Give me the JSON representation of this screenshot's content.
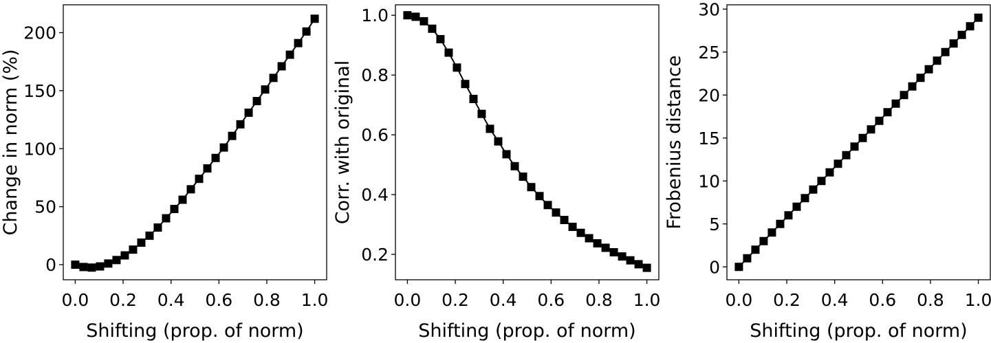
{
  "chart_data": [
    {
      "type": "line",
      "xlabel": "Shifting (prop. of norm)",
      "ylabel": "Change in norm (%)",
      "xlim": [
        -0.05,
        1.05
      ],
      "ylim": [
        -13,
        224
      ],
      "xticks": [
        0.0,
        0.2,
        0.4,
        0.6,
        0.8,
        1.0
      ],
      "xtick_labels": [
        "0.0",
        "0.2",
        "0.4",
        "0.6",
        "0.8",
        "1.0"
      ],
      "yticks": [
        0,
        50,
        100,
        150,
        200
      ],
      "ytick_labels": [
        "0",
        "50",
        "100",
        "150",
        "200"
      ],
      "marker": "square",
      "color": "#000000",
      "grid": false,
      "x": [
        0,
        0.0345,
        0.069,
        0.1034,
        0.1379,
        0.1724,
        0.2069,
        0.2414,
        0.2759,
        0.3103,
        0.3448,
        0.3793,
        0.4138,
        0.4483,
        0.4828,
        0.5172,
        0.5517,
        0.5862,
        0.6207,
        0.6552,
        0.6897,
        0.7241,
        0.7586,
        0.7931,
        0.8276,
        0.8621,
        0.8966,
        0.931,
        0.9655,
        1.0
      ],
      "y": [
        0,
        -2,
        -2.5,
        -1.5,
        1,
        4,
        8,
        13,
        19,
        25,
        32,
        40,
        48,
        56,
        65,
        74,
        83,
        92,
        101,
        111,
        121,
        131,
        141,
        151,
        161,
        171,
        181,
        191,
        201,
        212
      ]
    },
    {
      "type": "line",
      "xlabel": "Shifting (prop. of norm)",
      "ylabel": "Corr. with original",
      "xlim": [
        -0.05,
        1.05
      ],
      "ylim": [
        0.115,
        1.035
      ],
      "xticks": [
        0.0,
        0.2,
        0.4,
        0.6,
        0.8,
        1.0
      ],
      "xtick_labels": [
        "0.0",
        "0.2",
        "0.4",
        "0.6",
        "0.8",
        "1.0"
      ],
      "yticks": [
        0.2,
        0.4,
        0.6,
        0.8,
        1.0
      ],
      "ytick_labels": [
        "0.2",
        "0.4",
        "0.6",
        "0.8",
        "1.0"
      ],
      "marker": "square",
      "color": "#000000",
      "grid": false,
      "x": [
        0,
        0.0345,
        0.069,
        0.1034,
        0.1379,
        0.1724,
        0.2069,
        0.2414,
        0.2759,
        0.3103,
        0.3448,
        0.3793,
        0.4138,
        0.4483,
        0.4828,
        0.5172,
        0.5517,
        0.5862,
        0.6207,
        0.6552,
        0.6897,
        0.7241,
        0.7586,
        0.7931,
        0.8276,
        0.8621,
        0.8966,
        0.931,
        0.9655,
        1.0
      ],
      "y": [
        1.0,
        0.995,
        0.98,
        0.955,
        0.92,
        0.875,
        0.825,
        0.77,
        0.72,
        0.67,
        0.62,
        0.578,
        0.535,
        0.495,
        0.46,
        0.425,
        0.395,
        0.365,
        0.34,
        0.315,
        0.292,
        0.272,
        0.254,
        0.237,
        0.222,
        0.207,
        0.193,
        0.18,
        0.167,
        0.155
      ]
    },
    {
      "type": "line",
      "xlabel": "Shifting (prop. of norm)",
      "ylabel": "Frobenius distance",
      "xlim": [
        -0.05,
        1.05
      ],
      "ylim": [
        -1.5,
        30.5
      ],
      "xticks": [
        0.0,
        0.2,
        0.4,
        0.6,
        0.8,
        1.0
      ],
      "xtick_labels": [
        "0.0",
        "0.2",
        "0.4",
        "0.6",
        "0.8",
        "1.0"
      ],
      "yticks": [
        0,
        5,
        10,
        15,
        20,
        25,
        30
      ],
      "ytick_labels": [
        "0",
        "5",
        "10",
        "15",
        "20",
        "25",
        "30"
      ],
      "marker": "square",
      "color": "#000000",
      "grid": false,
      "x": [
        0,
        0.0345,
        0.069,
        0.1034,
        0.1379,
        0.1724,
        0.2069,
        0.2414,
        0.2759,
        0.3103,
        0.3448,
        0.3793,
        0.4138,
        0.4483,
        0.4828,
        0.5172,
        0.5517,
        0.5862,
        0.6207,
        0.6552,
        0.6897,
        0.7241,
        0.7586,
        0.7931,
        0.8276,
        0.8621,
        0.8966,
        0.931,
        0.9655,
        1.0
      ],
      "y": [
        0,
        1,
        2,
        3,
        4,
        5,
        6,
        7,
        8,
        9,
        10,
        11,
        12,
        13,
        14,
        15,
        16,
        17,
        18,
        19,
        20,
        21,
        22,
        23,
        24,
        25,
        26,
        27,
        28,
        29
      ]
    }
  ]
}
